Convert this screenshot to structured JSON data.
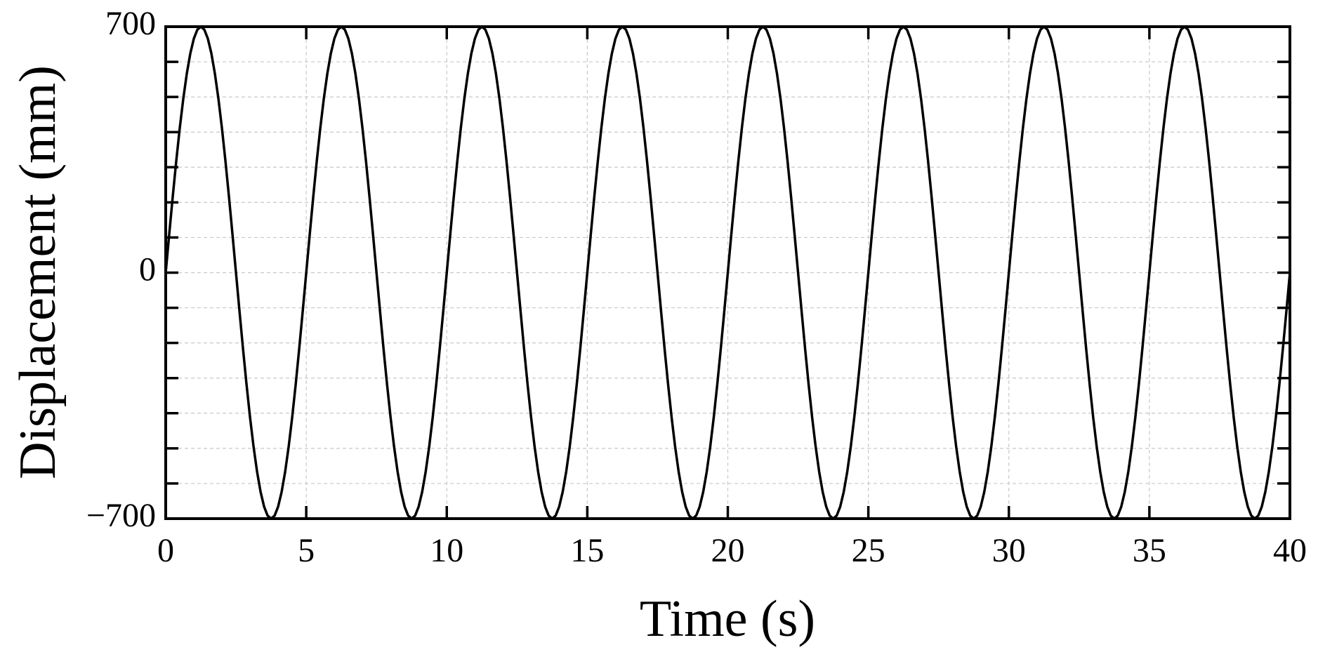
{
  "chart_data": {
    "type": "line",
    "xlabel": "Time (s)",
    "ylabel": "Displacement (mm)",
    "xlim": [
      0,
      40
    ],
    "ylim": [
      -700,
      700
    ],
    "xticks": [
      0,
      5,
      10,
      15,
      20,
      25,
      30,
      35,
      40
    ],
    "yticks": [
      {
        "value": -700,
        "label": "−700"
      },
      0,
      700
    ],
    "yticks_minor": [
      -600,
      -500,
      -400,
      -300,
      -200,
      -100,
      100,
      200,
      300,
      400,
      500,
      600
    ],
    "grid": true,
    "color": "#000000",
    "x": [
      0,
      0.125,
      0.25,
      0.375,
      0.5,
      0.625,
      0.75,
      0.875,
      1,
      1.125,
      1.25,
      1.375,
      1.5,
      1.625,
      1.75,
      1.875,
      2,
      2.125,
      2.25,
      2.375,
      2.5,
      2.625,
      2.75,
      2.875,
      3,
      3.125,
      3.25,
      3.375,
      3.5,
      3.625,
      3.75,
      3.875,
      4,
      4.125,
      4.25,
      4.375,
      4.5,
      4.625,
      4.75,
      4.875,
      5,
      5.125,
      5.25,
      5.375,
      5.5,
      5.625,
      5.75,
      5.875,
      6,
      6.125,
      6.25,
      6.375,
      6.5,
      6.625,
      6.75,
      6.875,
      7,
      7.125,
      7.25,
      7.375,
      7.5,
      7.625,
      7.75,
      7.875,
      8,
      8.125,
      8.25,
      8.375,
      8.5,
      8.625,
      8.75,
      8.875,
      9,
      9.125,
      9.25,
      9.375,
      9.5,
      9.625,
      9.75,
      9.875,
      10,
      10.125,
      10.25,
      10.375,
      10.5,
      10.625,
      10.75,
      10.875,
      11,
      11.125,
      11.25,
      11.375,
      11.5,
      11.625,
      11.75,
      11.875,
      12,
      12.125,
      12.25,
      12.375,
      12.5,
      12.625,
      12.75,
      12.875,
      13,
      13.125,
      13.25,
      13.375,
      13.5,
      13.625,
      13.75,
      13.875,
      14,
      14.125,
      14.25,
      14.375,
      14.5,
      14.625,
      14.75,
      14.875,
      15,
      15.125,
      15.25,
      15.375,
      15.5,
      15.625,
      15.75,
      15.875,
      16,
      16.125,
      16.25,
      16.375,
      16.5,
      16.625,
      16.75,
      16.875,
      17,
      17.125,
      17.25,
      17.375,
      17.5,
      17.625,
      17.75,
      17.875,
      18,
      18.125,
      18.25,
      18.375,
      18.5,
      18.625,
      18.75,
      18.875,
      19,
      19.125,
      19.25,
      19.375,
      19.5,
      19.625,
      19.75,
      19.875,
      20,
      20.125,
      20.25,
      20.375,
      20.5,
      20.625,
      20.75,
      20.875,
      21,
      21.125,
      21.25,
      21.375,
      21.5,
      21.625,
      21.75,
      21.875,
      22,
      22.125,
      22.25,
      22.375,
      22.5,
      22.625,
      22.75,
      22.875,
      23,
      23.125,
      23.25,
      23.375,
      23.5,
      23.625,
      23.75,
      23.875,
      24,
      24.125,
      24.25,
      24.375,
      24.5,
      24.625,
      24.75,
      24.875,
      25,
      25.125,
      25.25,
      25.375,
      25.5,
      25.625,
      25.75,
      25.875,
      26,
      26.125,
      26.25,
      26.375,
      26.5,
      26.625,
      26.75,
      26.875,
      27,
      27.125,
      27.25,
      27.375,
      27.5,
      27.625,
      27.75,
      27.875,
      28,
      28.125,
      28.25,
      28.375,
      28.5,
      28.625,
      28.75,
      28.875,
      29,
      29.125,
      29.25,
      29.375,
      29.5,
      29.625,
      29.75,
      29.875,
      30,
      30.125,
      30.25,
      30.375,
      30.5,
      30.625,
      30.75,
      30.875,
      31,
      31.125,
      31.25,
      31.375,
      31.5,
      31.625,
      31.75,
      31.875,
      32,
      32.125,
      32.25,
      32.375,
      32.5,
      32.625,
      32.75,
      32.875,
      33,
      33.125,
      33.25,
      33.375,
      33.5,
      33.625,
      33.75,
      33.875,
      34,
      34.125,
      34.25,
      34.375,
      34.5,
      34.625,
      34.75,
      34.875,
      35,
      35.125,
      35.25,
      35.375,
      35.5,
      35.625,
      35.75,
      35.875,
      36,
      36.125,
      36.25,
      36.375,
      36.5,
      36.625,
      36.75,
      36.875,
      37,
      37.125,
      37.25,
      37.375,
      37.5,
      37.625,
      37.75,
      37.875,
      38,
      38.125,
      38.25,
      38.375,
      38.5,
      38.625,
      38.75,
      38.875,
      39,
      39.125,
      39.25,
      39.375,
      39.5,
      39.625,
      39.75,
      39.875,
      40
    ],
    "values": [
      0,
      109.5,
      216.3,
      317.8,
      411.5,
      495,
      566.3,
      623.7,
      665.7,
      691.4,
      700,
      691.4,
      665.7,
      623.7,
      566.3,
      495,
      411.5,
      317.8,
      216.3,
      109.5,
      0,
      -109.5,
      -216.3,
      -317.8,
      -411.5,
      -495,
      -566.3,
      -623.7,
      -665.7,
      -691.4,
      -700,
      -691.4,
      -665.7,
      -623.7,
      -566.3,
      -495,
      -411.5,
      -317.8,
      -216.3,
      -109.5,
      0,
      109.5,
      216.3,
      317.8,
      411.5,
      495,
      566.3,
      623.7,
      665.7,
      691.4,
      700,
      691.4,
      665.7,
      623.7,
      566.3,
      495,
      411.5,
      317.8,
      216.3,
      109.5,
      0,
      -109.5,
      -216.3,
      -317.8,
      -411.5,
      -495,
      -566.3,
      -623.7,
      -665.7,
      -691.4,
      -700,
      -691.4,
      -665.7,
      -623.7,
      -566.3,
      -495,
      -411.5,
      -317.8,
      -216.3,
      -109.5,
      0,
      109.5,
      216.3,
      317.8,
      411.5,
      495,
      566.3,
      623.7,
      665.7,
      691.4,
      700,
      691.4,
      665.7,
      623.7,
      566.3,
      495,
      411.5,
      317.8,
      216.3,
      109.5,
      0,
      -109.5,
      -216.3,
      -317.8,
      -411.5,
      -495,
      -566.3,
      -623.7,
      -665.7,
      -691.4,
      -700,
      -691.4,
      -665.7,
      -623.7,
      -566.3,
      -495,
      -411.5,
      -317.8,
      -216.3,
      -109.5,
      0,
      109.5,
      216.3,
      317.8,
      411.5,
      495,
      566.3,
      623.7,
      665.7,
      691.4,
      700,
      691.4,
      665.7,
      623.7,
      566.3,
      495,
      411.5,
      317.8,
      216.3,
      109.5,
      0,
      -109.5,
      -216.3,
      -317.8,
      -411.5,
      -495,
      -566.3,
      -623.7,
      -665.7,
      -691.4,
      -700,
      -691.4,
      -665.7,
      -623.7,
      -566.3,
      -495,
      -411.5,
      -317.8,
      -216.3,
      -109.5,
      0,
      109.5,
      216.3,
      317.8,
      411.5,
      495,
      566.3,
      623.7,
      665.7,
      691.4,
      700,
      691.4,
      665.7,
      623.7,
      566.3,
      495,
      411.5,
      317.8,
      216.3,
      109.5,
      0,
      -109.5,
      -216.3,
      -317.8,
      -411.5,
      -495,
      -566.3,
      -623.7,
      -665.7,
      -691.4,
      -700,
      -691.4,
      -665.7,
      -623.7,
      -566.3,
      -495,
      -411.5,
      -317.8,
      -216.3,
      -109.5,
      0,
      109.5,
      216.3,
      317.8,
      411.5,
      495,
      566.3,
      623.7,
      665.7,
      691.4,
      700,
      691.4,
      665.7,
      623.7,
      566.3,
      495,
      411.5,
      317.8,
      216.3,
      109.5,
      0,
      -109.5,
      -216.3,
      -317.8,
      -411.5,
      -495,
      -566.3,
      -623.7,
      -665.7,
      -691.4,
      -700,
      -691.4,
      -665.7,
      -623.7,
      -566.3,
      -495,
      -411.5,
      -317.8,
      -216.3,
      -109.5,
      0,
      109.5,
      216.3,
      317.8,
      411.5,
      495,
      566.3,
      623.7,
      665.7,
      691.4,
      700,
      691.4,
      665.7,
      623.7,
      566.3,
      495,
      411.5,
      317.8,
      216.3,
      109.5,
      0,
      -109.5,
      -216.3,
      -317.8,
      -411.5,
      -495,
      -566.3,
      -623.7,
      -665.7,
      -691.4,
      -700,
      -691.4,
      -665.7,
      -623.7,
      -566.3,
      -495,
      -411.5,
      -317.8,
      -216.3,
      -109.5,
      0,
      109.5,
      216.3,
      317.8,
      411.5,
      495,
      566.3,
      623.7,
      665.7,
      691.4,
      700,
      691.4,
      665.7,
      623.7,
      566.3,
      495,
      411.5,
      317.8,
      216.3,
      109.5,
      0,
      -109.5,
      -216.3,
      -317.8,
      -411.5,
      -495,
      -566.3,
      -623.7,
      -665.7,
      -691.4,
      -700,
      -691.4,
      -665.7,
      -623.7,
      -566.3,
      -495,
      -411.5,
      -317.8,
      -216.3,
      -109.5,
      0
    ]
  }
}
